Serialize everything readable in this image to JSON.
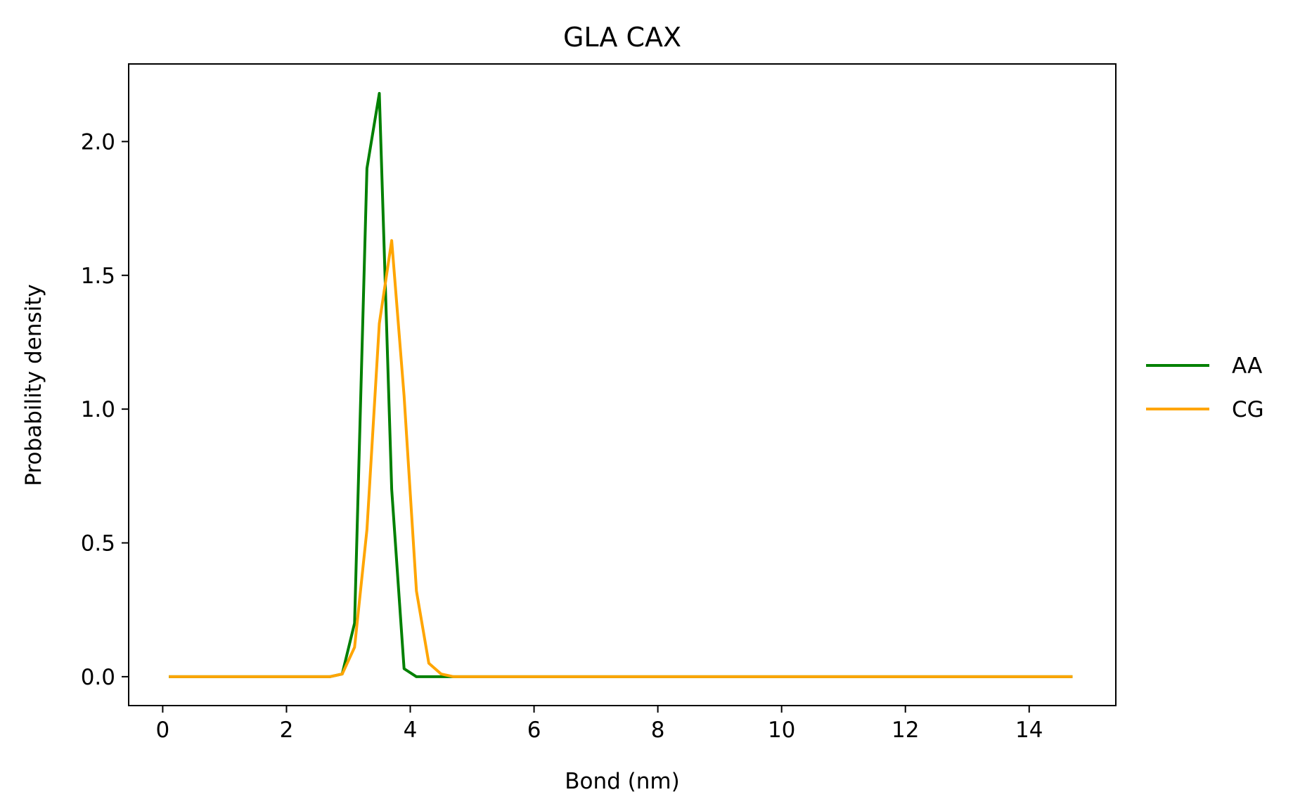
{
  "chart_data": {
    "type": "line",
    "title": "GLA CAX",
    "xlabel": "Bond (nm)",
    "ylabel": "Probability density",
    "xlim": [
      -0.55,
      15.4
    ],
    "ylim": [
      -0.108,
      2.29
    ],
    "xticks": [
      0,
      2,
      4,
      6,
      8,
      10,
      12,
      14
    ],
    "xtick_labels": [
      "0",
      "2",
      "4",
      "6",
      "8",
      "10",
      "12",
      "14"
    ],
    "yticks": [
      0.0,
      0.5,
      1.0,
      1.5,
      2.0
    ],
    "ytick_labels": [
      "0.0",
      "0.5",
      "1.0",
      "1.5",
      "2.0"
    ],
    "grid": false,
    "legend_position": "outside right",
    "series": [
      {
        "name": "AA",
        "color": "#008000",
        "x": [
          0.1,
          2.7,
          2.9,
          3.1,
          3.3,
          3.5,
          3.7,
          3.9,
          4.1,
          4.3,
          4.5,
          14.7
        ],
        "y": [
          0,
          0,
          0.01,
          0.2,
          1.9,
          2.18,
          0.7,
          0.03,
          0.0,
          0.0,
          0.0,
          0
        ]
      },
      {
        "name": "CG",
        "color": "#FFA500",
        "x": [
          0.1,
          2.7,
          2.9,
          3.1,
          3.3,
          3.5,
          3.7,
          3.9,
          4.1,
          4.3,
          4.5,
          4.7,
          14.7
        ],
        "y": [
          0,
          0,
          0.01,
          0.11,
          0.55,
          1.32,
          1.63,
          1.05,
          0.32,
          0.05,
          0.01,
          0.0,
          0
        ]
      }
    ]
  }
}
